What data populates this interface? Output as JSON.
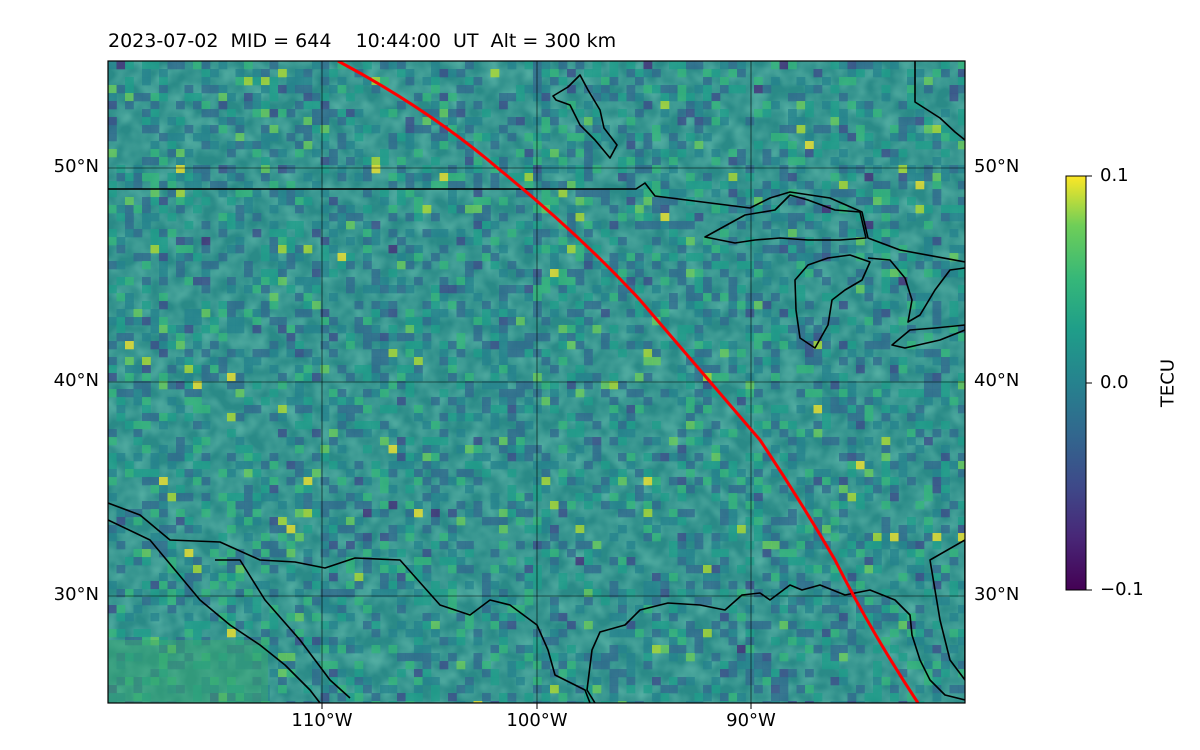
{
  "title": {
    "date": "2023-07-02",
    "mid": "MID = 644",
    "time": "10:44:00  UT",
    "alt": "Alt = 300 km"
  },
  "map": {
    "lat_labels": [
      "50°N",
      "40°N",
      "30°N"
    ],
    "lon_labels": [
      "110°W",
      "100°W",
      "90°W"
    ],
    "lon_range": [
      -120,
      -80
    ],
    "lat_range": [
      25,
      55
    ],
    "track_color": "#ff0000",
    "coastline_color": "#000000"
  },
  "colorbar": {
    "label": "TECU",
    "ticks": [
      "0.1",
      "0.0",
      "−0.1"
    ],
    "range": [
      -0.1,
      0.1
    ],
    "colormap": "viridis"
  }
}
